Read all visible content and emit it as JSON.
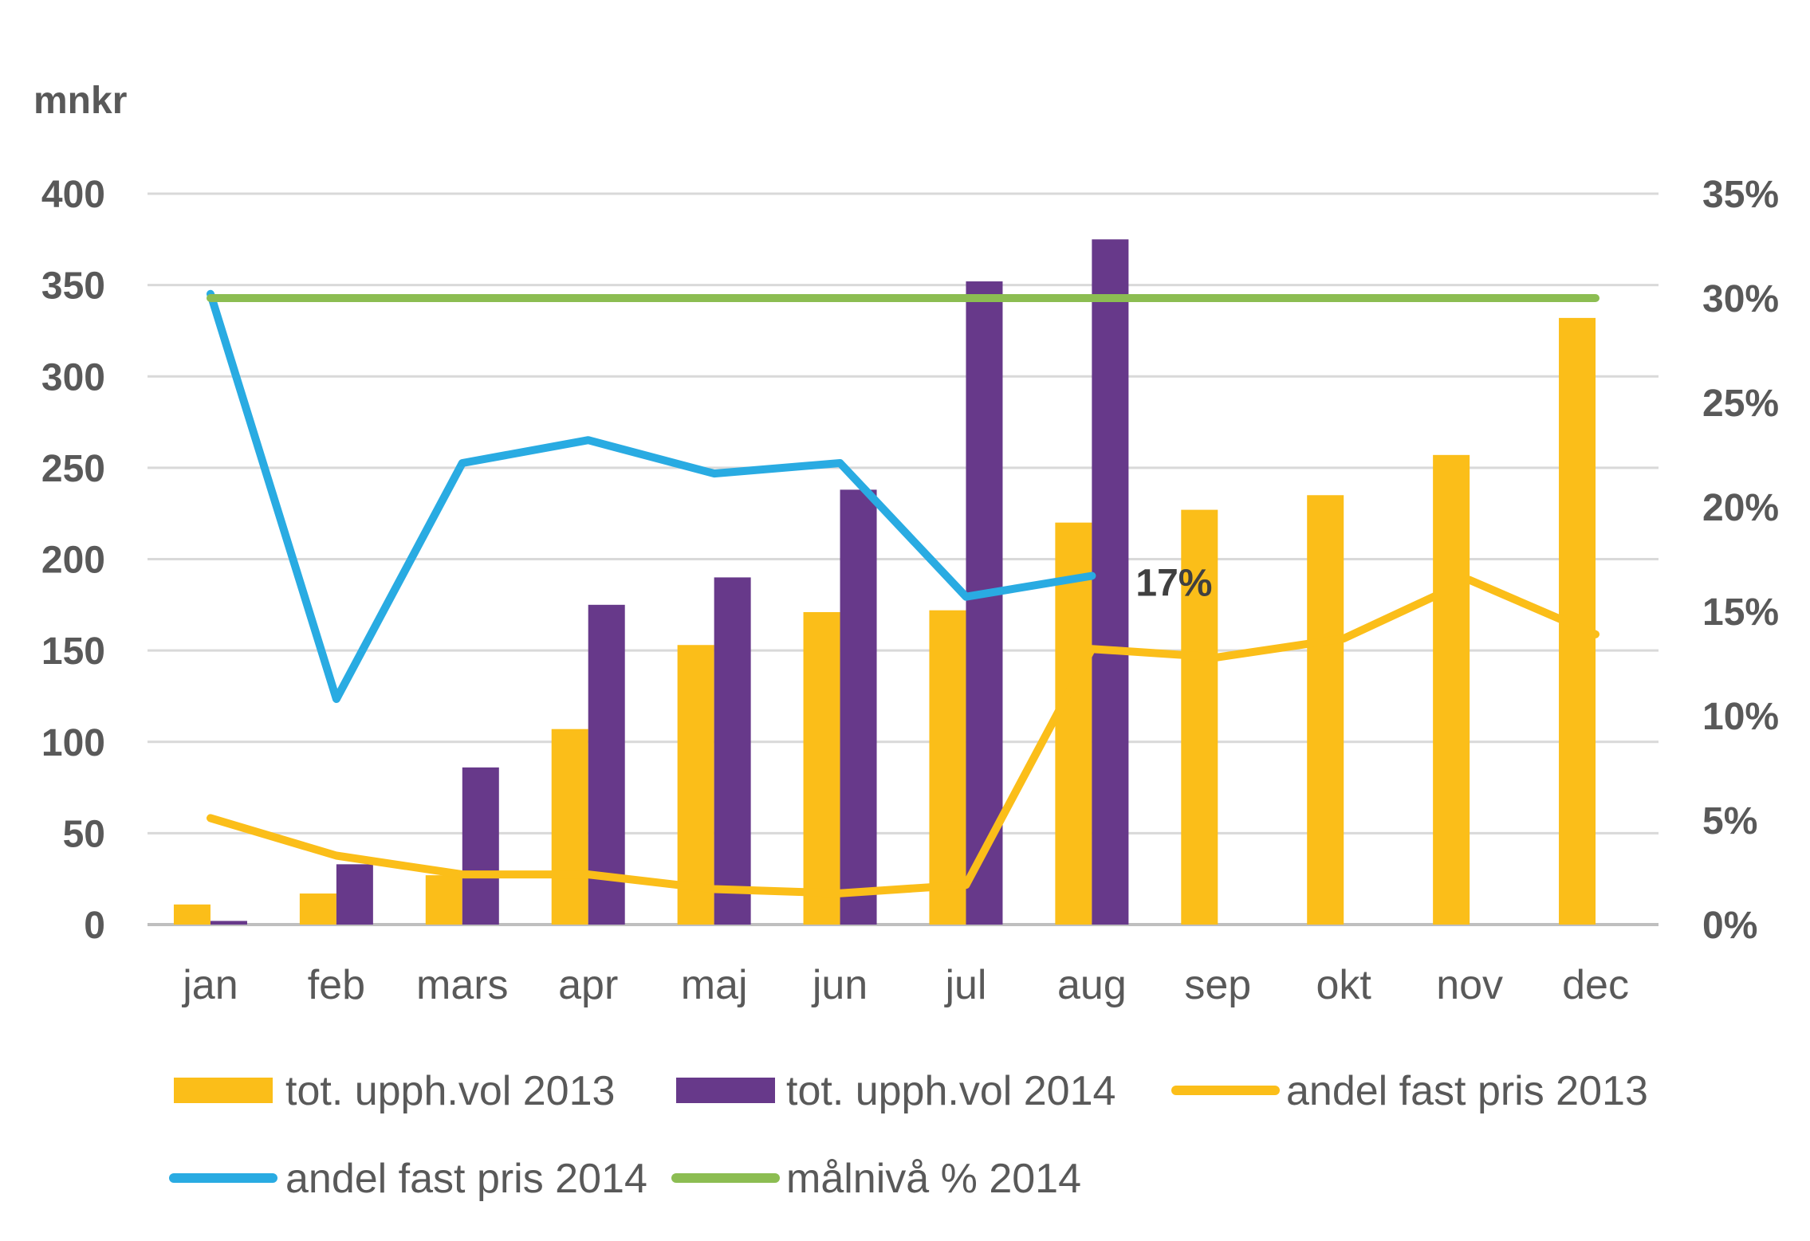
{
  "chart_data": {
    "type": "bar",
    "y_unit_label": "mnkr",
    "categories": [
      "jan",
      "feb",
      "mars",
      "apr",
      "maj",
      "jun",
      "jul",
      "aug",
      "sep",
      "okt",
      "nov",
      "dec"
    ],
    "ylim": [
      0,
      400
    ],
    "yticks": [
      "0",
      "50",
      "100",
      "150",
      "200",
      "250",
      "300",
      "350",
      "400"
    ],
    "y2lim": [
      0,
      0.35
    ],
    "y2ticks": [
      "0%",
      "5%",
      "10%",
      "15%",
      "20%",
      "25%",
      "30%",
      "35%"
    ],
    "grid": true,
    "legend_position": "bottom",
    "bar_series": [
      {
        "name": "tot. upph.vol 2013",
        "color": "#FBBE19",
        "values": [
          11,
          17,
          27,
          107,
          153,
          171,
          172,
          220,
          227,
          235,
          257,
          332
        ]
      },
      {
        "name": "tot. upph.vol 2014",
        "color": "#67398A",
        "values": [
          2,
          33,
          86,
          175,
          190,
          238,
          352,
          375,
          null,
          null,
          null,
          null
        ]
      }
    ],
    "line_series": [
      {
        "name": "andel fast pris 2013",
        "color": "#FBBE19",
        "axis": "right",
        "values": [
          0.051,
          0.033,
          0.024,
          0.024,
          0.017,
          0.015,
          0.019,
          0.132,
          0.128,
          0.137,
          0.165,
          0.139
        ]
      },
      {
        "name": "andel fast pris 2014",
        "color": "#29ABE2",
        "axis": "right",
        "values": [
          0.302,
          0.108,
          0.221,
          0.232,
          0.216,
          0.221,
          0.157,
          0.167,
          null,
          null,
          null,
          null
        ]
      },
      {
        "name": "målnivå % 2014",
        "color": "#8CBD52",
        "axis": "right",
        "values": [
          0.3,
          0.3,
          0.3,
          0.3,
          0.3,
          0.3,
          0.3,
          0.3,
          0.3,
          0.3,
          0.3,
          0.3
        ]
      }
    ],
    "annotations": [
      {
        "text": "17%",
        "series": "andel fast pris 2014",
        "category": "aug"
      }
    ]
  }
}
